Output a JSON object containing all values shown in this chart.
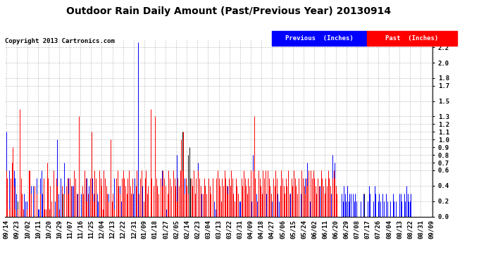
{
  "title": "Outdoor Rain Daily Amount (Past/Previous Year) 20130914",
  "copyright": "Copyright 2013 Cartronics.com",
  "legend_prev": "Previous  (Inches)",
  "legend_past": "Past  (Inches)",
  "ylim": [
    0,
    2.3
  ],
  "yticks": [
    0.0,
    0.2,
    0.4,
    0.6,
    0.7,
    0.8,
    0.9,
    1.0,
    1.1,
    1.2,
    1.3,
    1.5,
    1.7,
    1.8,
    2.0,
    2.2
  ],
  "bg_color": "#ffffff",
  "grid_color": "#aaaaaa",
  "prev_color": "#0000ff",
  "past_color": "#ff0000",
  "title_fontsize": 10,
  "copyright_fontsize": 6.5,
  "tick_fontsize": 6.5,
  "x_labels": [
    "09/14",
    "09/23",
    "10/02",
    "10/11",
    "10/20",
    "10/29",
    "11/07",
    "11/16",
    "11/25",
    "12/04",
    "12/13",
    "12/22",
    "12/31",
    "01/09",
    "01/18",
    "01/27",
    "02/05",
    "02/14",
    "02/23",
    "03/04",
    "03/13",
    "03/22",
    "03/31",
    "04/09",
    "04/18",
    "04/27",
    "05/06",
    "05/15",
    "05/24",
    "06/02",
    "06/11",
    "06/20",
    "06/29",
    "07/08",
    "07/17",
    "07/26",
    "08/04",
    "08/13",
    "08/22",
    "08/31",
    "09/09"
  ],
  "prev_rain": [
    1.1,
    0.0,
    0.0,
    0.6,
    0.1,
    0.1,
    0.0,
    0.6,
    0.5,
    0.3,
    0.0,
    0.0,
    0.0,
    0.2,
    0.0,
    0.0,
    0.3,
    0.2,
    0.2,
    0.0,
    0.0,
    0.1,
    0.4,
    0.0,
    0.4,
    0.0,
    0.0,
    0.5,
    0.1,
    0.1,
    0.5,
    0.6,
    0.3,
    0.0,
    0.0,
    0.1,
    0.0,
    0.3,
    0.0,
    0.2,
    0.1,
    0.0,
    0.0,
    0.2,
    0.4,
    1.0,
    0.3,
    0.0,
    0.5,
    0.2,
    0.0,
    0.7,
    0.0,
    0.1,
    0.5,
    0.5,
    0.4,
    0.2,
    0.4,
    0.4,
    0.0,
    0.0,
    0.2,
    0.3,
    0.0,
    0.0,
    0.3,
    0.0,
    0.2,
    0.4,
    0.3,
    0.5,
    0.1,
    0.4,
    0.1,
    0.4,
    0.5,
    0.3,
    0.2,
    0.4,
    0.3,
    0.2,
    0.2,
    0.4,
    0.3,
    0.0,
    0.6,
    0.1,
    0.2,
    0.1,
    0.3,
    0.0,
    0.5,
    0.0,
    0.3,
    0.5,
    0.0,
    0.0,
    0.4,
    0.3,
    0.4,
    0.2,
    0.3,
    0.2,
    0.0,
    0.0,
    0.0,
    0.2,
    0.3,
    0.2,
    0.3,
    0.4,
    0.3,
    0.5,
    0.2,
    0.2,
    2.27,
    0.0,
    0.0,
    0.1,
    0.4,
    0.0,
    0.4,
    0.2,
    0.1,
    0.0,
    0.0,
    0.2,
    0.3,
    0.0,
    0.0,
    0.3,
    0.0,
    0.2,
    0.1,
    0.0,
    0.0,
    0.6,
    0.0,
    0.0,
    0.0,
    0.1,
    0.0,
    0.2,
    0.2,
    0.1,
    0.0,
    0.0,
    0.3,
    0.2,
    0.8,
    0.5,
    0.2,
    0.0,
    0.3,
    0.2,
    0.1,
    0.5,
    0.3,
    0.0,
    0.2,
    0.0,
    0.0,
    0.4,
    0.0,
    0.2,
    0.3,
    0.2,
    0.0,
    0.7,
    0.3,
    0.2,
    0.3,
    0.2,
    0.1,
    0.2,
    0.2,
    0.0,
    0.0,
    0.3,
    0.2,
    0.0,
    0.0,
    0.2,
    0.1,
    0.0,
    0.4,
    0.2,
    0.3,
    0.1,
    0.0,
    0.0,
    0.0,
    0.3,
    0.1,
    0.4,
    0.2,
    0.4,
    0.2,
    0.1,
    0.3,
    0.2,
    0.3,
    0.0,
    0.3,
    0.2,
    0.2,
    0.3,
    0.2,
    0.0,
    0.3,
    0.0,
    0.0,
    0.2,
    0.3,
    0.4,
    0.2,
    0.8,
    0.2,
    0.0,
    0.3,
    0.2,
    0.0,
    0.0,
    0.3,
    0.2,
    0.3,
    0.2,
    0.0,
    0.3,
    0.4,
    0.2,
    0.0,
    0.3,
    0.2,
    0.0,
    0.0,
    0.2,
    0.0,
    0.3,
    0.2,
    0.4,
    0.3,
    0.2,
    0.1,
    0.3,
    0.2,
    0.0,
    0.5,
    0.2,
    0.3,
    0.0,
    0.0,
    0.2,
    0.0,
    0.3,
    0.0,
    0.2,
    0.0,
    0.3,
    0.2,
    0.1,
    0.0,
    0.5,
    0.3,
    0.7,
    0.3,
    0.2,
    0.1,
    0.2,
    0.0,
    0.3,
    0.3,
    0.2,
    0.0,
    0.3,
    0.4,
    0.2,
    0.3,
    0.0,
    0.3,
    0.2,
    0.2,
    0.3,
    0.2,
    0.4,
    0.3,
    0.8,
    0.3,
    0.7,
    0.3,
    0.0,
    0.0,
    0.0,
    0.0,
    0.3,
    0.2,
    0.4,
    0.3,
    0.2,
    0.4,
    0.2,
    0.3,
    0.3,
    0.0,
    0.3,
    0.2,
    0.3,
    0.2,
    0.0,
    0.0,
    0.0,
    0.2,
    0.0,
    0.3,
    0.0,
    0.0,
    0.0,
    0.2,
    0.4,
    0.3,
    0.0,
    0.0,
    0.2,
    0.4,
    0.3,
    0.0,
    0.2,
    0.3,
    0.2,
    0.0,
    0.3,
    0.2,
    0.0,
    0.3,
    0.2,
    0.0,
    0.0,
    0.2,
    0.0,
    0.3,
    0.2,
    0.0,
    0.2,
    0.0,
    0.0,
    0.3,
    0.3,
    0.2,
    0.0,
    0.3,
    0.2,
    0.4,
    0.3,
    0.2,
    0.2,
    0.3,
    0.0,
    0.0,
    0.0,
    0.0,
    0.0,
    0.0,
    0.0,
    0.0,
    0.0,
    0.0,
    0.0,
    0.0,
    0.0,
    0.0,
    0.0,
    0.0,
    0.0,
    0.0
  ],
  "past_rain": [
    0.6,
    0.5,
    0.0,
    0.1,
    0.5,
    0.7,
    0.9,
    0.4,
    0.1,
    0.0,
    0.1,
    0.0,
    1.4,
    0.5,
    0.3,
    0.1,
    0.0,
    0.0,
    0.1,
    0.0,
    0.6,
    0.6,
    0.3,
    0.0,
    0.0,
    0.4,
    0.0,
    0.3,
    0.0,
    0.0,
    0.3,
    0.0,
    0.0,
    0.5,
    0.1,
    0.1,
    0.7,
    0.5,
    0.1,
    0.4,
    0.2,
    0.0,
    0.6,
    0.0,
    0.5,
    0.4,
    0.0,
    0.1,
    0.0,
    0.4,
    0.0,
    0.3,
    0.0,
    0.4,
    0.5,
    0.3,
    0.5,
    0.4,
    0.0,
    0.0,
    0.6,
    0.5,
    0.3,
    0.0,
    1.3,
    0.0,
    0.0,
    0.4,
    0.3,
    0.6,
    0.5,
    0.2,
    0.3,
    0.0,
    0.5,
    1.1,
    0.3,
    0.2,
    0.6,
    0.5,
    0.0,
    0.0,
    0.6,
    0.5,
    0.4,
    0.1,
    0.6,
    0.5,
    0.4,
    0.3,
    0.2,
    0.0,
    1.0,
    0.2,
    0.3,
    0.1,
    0.0,
    0.5,
    0.6,
    0.4,
    0.3,
    0.0,
    0.5,
    0.6,
    0.5,
    0.4,
    0.3,
    0.5,
    0.6,
    0.4,
    0.3,
    0.5,
    0.0,
    0.0,
    0.4,
    0.6,
    0.0,
    0.3,
    0.5,
    0.6,
    0.0,
    0.2,
    0.5,
    0.6,
    0.3,
    0.4,
    0.0,
    1.4,
    0.5,
    0.0,
    0.4,
    1.3,
    0.5,
    0.4,
    0.3,
    0.0,
    0.5,
    0.4,
    0.6,
    0.5,
    0.4,
    0.0,
    0.3,
    0.6,
    0.5,
    0.4,
    0.0,
    0.6,
    0.5,
    0.4,
    0.2,
    0.5,
    0.4,
    0.6,
    1.0,
    0.6,
    1.1,
    0.3,
    0.5,
    0.4,
    0.3,
    0.0,
    0.0,
    0.5,
    0.4,
    0.6,
    0.3,
    0.5,
    0.0,
    0.6,
    0.5,
    0.4,
    0.0,
    0.3,
    0.5,
    0.4,
    0.3,
    0.0,
    0.5,
    0.4,
    0.3,
    0.0,
    0.5,
    0.0,
    0.0,
    0.5,
    0.6,
    0.5,
    0.4,
    0.2,
    0.5,
    0.4,
    0.6,
    0.5,
    0.4,
    0.3,
    0.5,
    0.4,
    0.6,
    0.5,
    0.3,
    0.2,
    0.5,
    0.4,
    0.3,
    0.0,
    0.0,
    0.5,
    0.4,
    0.6,
    0.5,
    0.4,
    0.3,
    0.5,
    0.4,
    0.6,
    0.0,
    0.6,
    1.3,
    0.5,
    0.2,
    0.0,
    0.6,
    0.5,
    0.4,
    0.3,
    0.6,
    0.5,
    0.6,
    0.0,
    0.6,
    0.5,
    0.4,
    0.3,
    0.0,
    0.5,
    0.4,
    0.6,
    0.5,
    0.0,
    0.0,
    0.4,
    0.6,
    0.5,
    0.4,
    0.3,
    0.5,
    0.4,
    0.6,
    0.3,
    0.0,
    0.5,
    0.4,
    0.6,
    0.5,
    0.4,
    0.3,
    0.5,
    0.0,
    0.0,
    0.6,
    0.5,
    0.4,
    0.3,
    0.5,
    0.4,
    0.6,
    0.0,
    0.6,
    0.5,
    0.6,
    0.5,
    0.4,
    0.3,
    0.5,
    0.4,
    0.0,
    0.6,
    0.5,
    0.4,
    0.3,
    0.5,
    0.4,
    0.6,
    0.5,
    0.4,
    0.0,
    0.5,
    0.6,
    0.5,
    0.4,
    0.3,
    0.0,
    0.0,
    0.0,
    0.0,
    0.0,
    0.0,
    0.0,
    0.0,
    0.0,
    0.0,
    0.0,
    0.0,
    0.0,
    0.0,
    0.0,
    0.0,
    0.0,
    0.0,
    0.0,
    0.0,
    0.0,
    0.0,
    0.0,
    0.0,
    0.0,
    0.0,
    0.0,
    0.0,
    0.0,
    0.0,
    0.0,
    0.0,
    0.0,
    0.0,
    0.0,
    0.0,
    0.0,
    0.0,
    0.0,
    0.0,
    0.0,
    0.0,
    0.0,
    0.0,
    0.0,
    0.0,
    0.0,
    0.0,
    0.0,
    0.0,
    0.0,
    0.0,
    0.0,
    0.0,
    0.0,
    0.0,
    0.0,
    0.0,
    0.0,
    0.0,
    0.0,
    0.0,
    0.0,
    0.0,
    0.0,
    0.0,
    0.0,
    0.0,
    0.0,
    0.0,
    0.0,
    0.0,
    0.0,
    0.0,
    0.0,
    0.0,
    0.0,
    0.0,
    0.0,
    0.0,
    0.0,
    0.0,
    0.0
  ],
  "dark_rain_days": [
    7,
    8,
    10,
    50,
    155,
    160,
    161,
    162,
    175,
    230,
    231,
    250,
    265,
    280,
    290,
    300,
    315
  ],
  "dark_rain_vals": [
    0.3,
    0.5,
    0.2,
    0.3,
    1.1,
    0.8,
    0.9,
    0.5,
    0.4,
    0.3,
    0.4,
    0.3,
    0.5,
    0.3,
    0.4,
    0.4,
    0.3
  ]
}
